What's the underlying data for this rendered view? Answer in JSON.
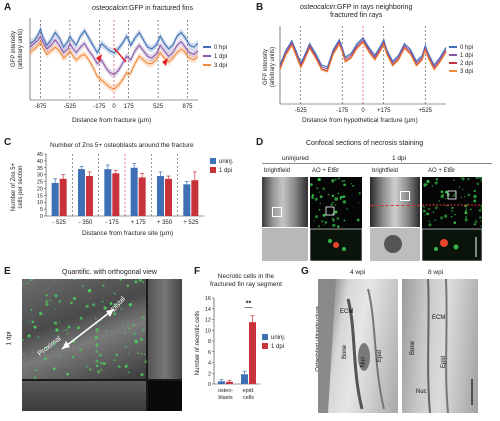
{
  "panels": {
    "A": {
      "letter": "A",
      "title_italic": "osteocalcin",
      "title_rest": ":GFP in fractured fins",
      "ylabel_1": "GFP intensity",
      "ylabel_2": "(arbitrary units)",
      "xlabel": "Distance from fracture (µm)",
      "x_ticks": [
        "-875",
        "-525",
        "-175",
        "0",
        "175",
        "525",
        "875"
      ],
      "legend": [
        "0 hpi",
        "1 dpi",
        "3 dpi"
      ]
    },
    "B": {
      "letter": "B",
      "title_line1_italic": "osteocalcin",
      "title_line1_rest": ":GFP in rays neighboring",
      "title_line2": "fractured fin rays",
      "ylabel_1": "GFP intensity",
      "ylabel_2": "(arbitrary units)",
      "xlabel": "Distance from hypothetical fracture (µm)",
      "x_ticks": [
        "-525",
        "-175",
        "0",
        "+175",
        "+525"
      ],
      "legend": [
        "0 hpi",
        "1 dpi",
        "2 dpi",
        "3 dpi"
      ]
    },
    "C": {
      "letter": "C",
      "title": "Number of Zns 5+ osteoblasts around the fracture",
      "ylabel_1": "Number of Zns 5+",
      "ylabel_2": "cells per section",
      "xlabel": "Distance from fracture site (µm)",
      "legend": [
        "uninj.",
        "1 dpi"
      ]
    },
    "D": {
      "letter": "D",
      "title": "Confocal sections of necrosis staining",
      "uninjured": "uninjured",
      "dpi": "1 dpi",
      "brightfield": "brightfield",
      "ao": "AO + EtBr"
    },
    "E": {
      "letter": "E",
      "title": "Quantific. with orthogonal view",
      "side": "1 dpi",
      "proximal": "Proximal",
      "distal": "Distal"
    },
    "F": {
      "letter": "F",
      "title_1": "Necrotic cells in the",
      "title_2": "fractured fin ray segment",
      "ylabel": "Number of necrotic cells",
      "legend": [
        "uninj.",
        "1 dpi"
      ],
      "sig": "**"
    },
    "G": {
      "letter": "G",
      "col1": "4 wpi",
      "col2": "8 wpi",
      "side": "Osteoblast ultrastructure",
      "labels": [
        "ECM",
        "Bone",
        "Nuc",
        "Epid",
        "ECM",
        "Bone",
        "Nuc",
        "Epid"
      ]
    }
  },
  "colors": {
    "blue": "#3f6fb5",
    "purple": "#8a5aa8",
    "red": "#c8323a",
    "orange": "#f08a3c"
  },
  "chart_data": [
    {
      "id": "A",
      "type": "line",
      "xlabel": "Distance from fracture (µm)",
      "ylabel": "GFP intensity (arbitrary units)",
      "x_ticks": [
        -875,
        -525,
        -175,
        0,
        175,
        525,
        875
      ],
      "x": [
        -1000,
        -950,
        -900,
        -875,
        -850,
        -800,
        -750,
        -700,
        -650,
        -600,
        -550,
        -525,
        -500,
        -450,
        -400,
        -350,
        -300,
        -250,
        -200,
        -175,
        -150,
        -100,
        -50,
        0,
        50,
        100,
        150,
        175,
        200,
        250,
        300,
        350,
        400,
        450,
        500,
        525,
        550,
        600,
        650,
        700,
        750,
        800,
        850,
        875,
        900,
        950,
        1000
      ],
      "series": [
        {
          "name": "0 hpi",
          "values": [
            62,
            65,
            72,
            78,
            70,
            60,
            66,
            74,
            68,
            58,
            64,
            70,
            66,
            60,
            70,
            76,
            68,
            60,
            52,
            56,
            62,
            58,
            54,
            52,
            56,
            62,
            70,
            66,
            60,
            68,
            74,
            66,
            58,
            56,
            60,
            64,
            70,
            62,
            56,
            60,
            70,
            74,
            68,
            64,
            60,
            58,
            62
          ]
        },
        {
          "name": "1 dpi",
          "values": [
            58,
            62,
            66,
            70,
            64,
            56,
            60,
            66,
            60,
            52,
            56,
            62,
            58,
            52,
            58,
            62,
            54,
            48,
            40,
            42,
            44,
            36,
            30,
            28,
            32,
            40,
            48,
            46,
            44,
            54,
            60,
            54,
            48,
            46,
            50,
            54,
            60,
            54,
            48,
            52,
            60,
            64,
            58,
            54,
            52,
            50,
            54
          ]
        },
        {
          "name": "3 dpi",
          "values": [
            52,
            56,
            60,
            64,
            58,
            50,
            54,
            58,
            54,
            46,
            50,
            54,
            50,
            44,
            48,
            50,
            44,
            36,
            26,
            24,
            22,
            18,
            14,
            12,
            16,
            22,
            30,
            28,
            30,
            40,
            48,
            44,
            40,
            40,
            44,
            48,
            52,
            46,
            42,
            46,
            52,
            56,
            52,
            48,
            46,
            44,
            48
          ]
        }
      ]
    },
    {
      "id": "B",
      "type": "line",
      "xlabel": "Distance from hypothetical fracture (µm)",
      "ylabel": "GFP intensity (arbitrary units)",
      "x_ticks": [
        -525,
        -175,
        0,
        175,
        525
      ],
      "x": [
        -700,
        -650,
        -600,
        -550,
        -525,
        -500,
        -450,
        -400,
        -350,
        -300,
        -250,
        -200,
        -175,
        -150,
        -100,
        -50,
        0,
        50,
        100,
        150,
        175,
        200,
        250,
        300,
        350,
        400,
        450,
        500,
        525,
        550,
        600,
        650,
        700
      ],
      "series": [
        {
          "name": "0 hpi",
          "values": [
            40,
            55,
            65,
            50,
            42,
            48,
            62,
            52,
            40,
            38,
            56,
            66,
            58,
            48,
            52,
            62,
            68,
            58,
            50,
            60,
            66,
            56,
            44,
            50,
            62,
            56,
            44,
            50,
            60,
            52,
            40,
            48,
            58
          ]
        },
        {
          "name": "1 dpi",
          "values": [
            38,
            53,
            63,
            48,
            40,
            46,
            60,
            50,
            38,
            36,
            54,
            64,
            56,
            46,
            50,
            60,
            66,
            56,
            48,
            58,
            64,
            54,
            42,
            48,
            60,
            54,
            42,
            48,
            58,
            50,
            38,
            46,
            56
          ]
        },
        {
          "name": "2 dpi",
          "values": [
            36,
            51,
            61,
            46,
            38,
            44,
            58,
            48,
            36,
            34,
            52,
            62,
            54,
            44,
            48,
            58,
            64,
            54,
            46,
            56,
            62,
            52,
            40,
            46,
            58,
            52,
            40,
            46,
            56,
            48,
            36,
            44,
            54
          ]
        },
        {
          "name": "3 dpi",
          "values": [
            35,
            50,
            60,
            45,
            37,
            43,
            57,
            47,
            35,
            33,
            51,
            61,
            53,
            43,
            47,
            57,
            63,
            53,
            45,
            55,
            61,
            51,
            39,
            45,
            57,
            51,
            39,
            45,
            55,
            47,
            35,
            43,
            53
          ]
        }
      ]
    },
    {
      "id": "C",
      "type": "bar",
      "title": "Number of Zns 5+ osteoblasts around the fracture",
      "xlabel": "Distance from fracture site (µm)",
      "ylabel": "Number of Zns 5+ cells per section",
      "categories": [
        "- 525",
        "- 350",
        "- 175",
        "+ 175",
        "+ 350",
        "+ 525"
      ],
      "ylim": [
        0,
        45
      ],
      "y_ticks": [
        0,
        5,
        10,
        15,
        20,
        25,
        30,
        35,
        40,
        45
      ],
      "series": [
        {
          "name": "uninj.",
          "values": [
            24,
            34,
            34,
            35,
            29,
            23
          ],
          "errors": [
            3,
            2,
            3,
            3,
            3,
            2
          ]
        },
        {
          "name": "1 dpi",
          "values": [
            27,
            29,
            31,
            28,
            27,
            26
          ],
          "errors": [
            3,
            3,
            2,
            3,
            2,
            6
          ]
        }
      ]
    },
    {
      "id": "F",
      "type": "bar",
      "title": "Necrotic cells in the fractured fin ray segment",
      "ylabel": "Number of necrotic cells",
      "categories": [
        "osteo-blasts",
        "epid. cells"
      ],
      "ylim": [
        0,
        16
      ],
      "y_ticks": [
        0,
        2,
        4,
        6,
        8,
        10,
        12,
        14,
        16
      ],
      "series": [
        {
          "name": "uninj.",
          "values": [
            0.5,
            1.8
          ],
          "errors": [
            0.3,
            0.6
          ]
        },
        {
          "name": "1 dpi",
          "values": [
            0.4,
            11.5
          ],
          "errors": [
            0.3,
            1.2
          ]
        }
      ]
    }
  ]
}
